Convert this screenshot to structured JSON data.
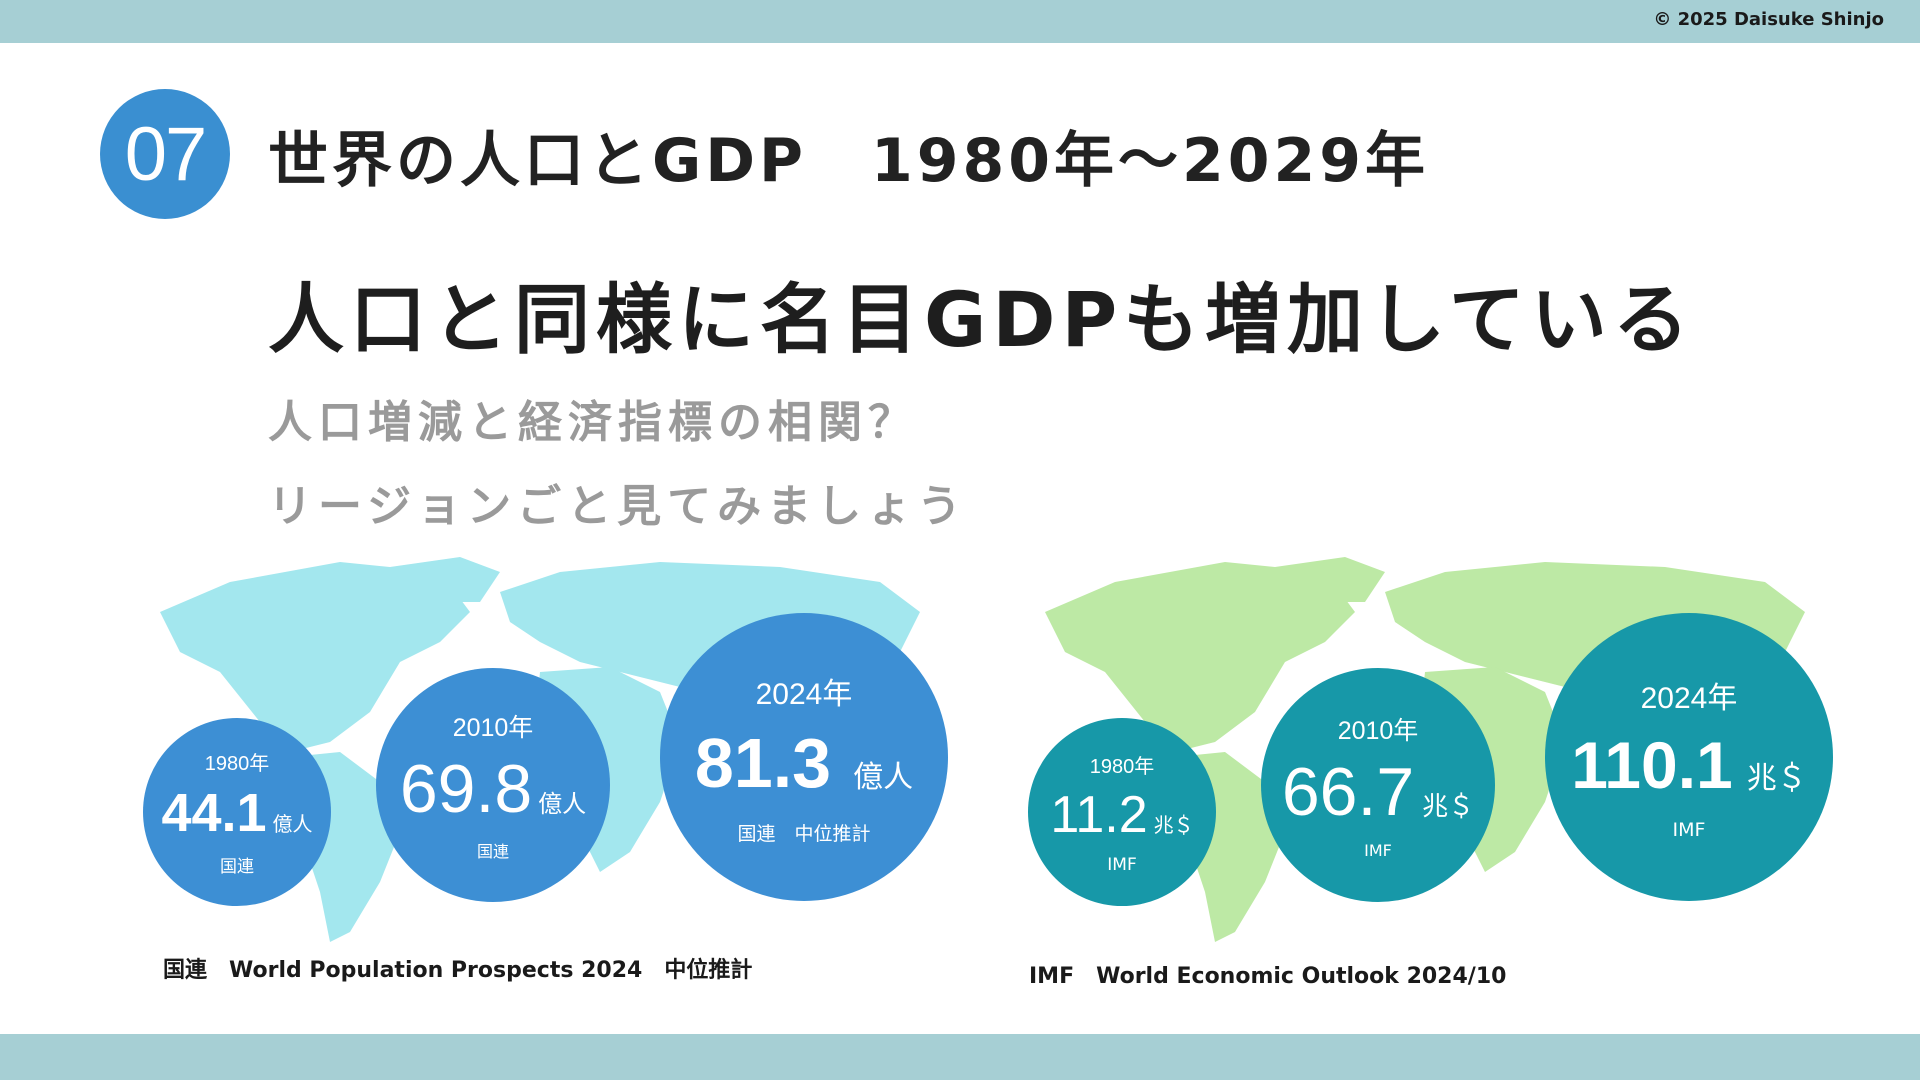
{
  "header": {
    "copyright": "© 2025 Daisuke Shinjo"
  },
  "slide": {
    "number": "07",
    "title": "世界の人口とGDP　1980年～2029年",
    "headline": "人口と同様に名目GDPも増加している",
    "subtitle_lines": [
      "人口増減と経済指標の相関？",
      "リージョンごと見てみましょう"
    ]
  },
  "population": {
    "map_color": "#a3e7ee",
    "circle_color": "#3d8fd4",
    "items": [
      {
        "year": "1980年",
        "value": "44.1",
        "unit": "億人",
        "source": "国連"
      },
      {
        "year": "2010年",
        "value": "69.8",
        "unit": "億人",
        "source": "国連"
      },
      {
        "year": "2024年",
        "value": "81.3",
        "unit": "億人",
        "source": "国連　中位推計"
      }
    ],
    "source_caption": "国連　World Population Prospects 2024　中位推計"
  },
  "gdp": {
    "map_color": "#bde9a5",
    "circle_color": "#1798a8",
    "items": [
      {
        "year": "1980年",
        "value": "11.2",
        "unit": "兆＄",
        "source": "IMF"
      },
      {
        "year": "2010年",
        "value": "66.7",
        "unit": "兆＄",
        "source": "IMF"
      },
      {
        "year": "2024年",
        "value": "110.1",
        "unit": "兆＄",
        "source": "IMF"
      }
    ],
    "source_caption": "IMF　World Economic Outlook 2024/10"
  },
  "colors": {
    "band": "#a6cfd4",
    "badge": "#3a8fd1",
    "title": "#222222",
    "subtitle": "#9a9a9a"
  }
}
